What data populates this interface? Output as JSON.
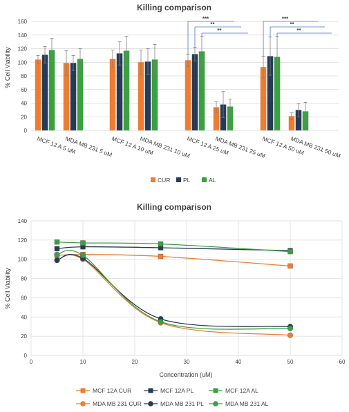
{
  "colors": {
    "CUR": "#ED7D31",
    "PL": "#263B55",
    "AL": "#3BA040",
    "sig_line": "#4472C4",
    "grid": "#D9D9D9",
    "axis_text": "#404040"
  },
  "chart_data": [
    {
      "type": "bar",
      "title": "Killing comparison",
      "ylabel": "% Cell Viability",
      "xlabel": "",
      "ylim": [
        0,
        160
      ],
      "yticks": [
        0,
        20,
        40,
        60,
        80,
        100,
        120,
        140,
        160
      ],
      "grid": true,
      "legend_position": "bottom",
      "groups": [
        {
          "label": "MCF 12 A  5 uM",
          "values": [
            104,
            111,
            118
          ],
          "errors": [
            6,
            12,
            17
          ]
        },
        {
          "label": "MDA MB 231  5 uM",
          "values": [
            99,
            99,
            105
          ],
          "errors": [
            18,
            11,
            15
          ]
        },
        {
          "label": "MCF 12 A  10 uM",
          "values": [
            105,
            113,
            117
          ],
          "errors": [
            13,
            17,
            21
          ]
        },
        {
          "label": "MDA MB 231  10 uM",
          "values": [
            100,
            101,
            104
          ],
          "errors": [
            18,
            19,
            22
          ]
        },
        {
          "label": "MCF 12 A  25 uM",
          "values": [
            103,
            112,
            116
          ],
          "errors": [
            9,
            10,
            22
          ]
        },
        {
          "label": "MDA MB 231  25 uM",
          "values": [
            34,
            38,
            35
          ],
          "errors": [
            8,
            19,
            11
          ]
        },
        {
          "label": "MCF 12 A  50 uM",
          "values": [
            93,
            109,
            108
          ],
          "errors": [
            16,
            28,
            30
          ]
        },
        {
          "label": "MDA MB 231  50 uM",
          "values": [
            21,
            30,
            28
          ],
          "errors": [
            5,
            10,
            13
          ]
        }
      ],
      "series": [
        {
          "name": "CUR",
          "color": "#ED7D31"
        },
        {
          "name": "PL",
          "color": "#263B55"
        },
        {
          "name": "AL",
          "color": "#3BA040"
        }
      ],
      "significance": [
        {
          "label": "***",
          "from_group": 4,
          "from_series": 0,
          "to_group": 5,
          "to_series": 0
        },
        {
          "label": "**",
          "from_group": 4,
          "from_series": 1,
          "to_group": 5,
          "to_series": 1
        },
        {
          "label": "**",
          "from_group": 4,
          "from_series": 2,
          "to_group": 5,
          "to_series": 2
        },
        {
          "label": "***",
          "from_group": 6,
          "from_series": 0,
          "to_group": 7,
          "to_series": 0
        },
        {
          "label": "**",
          "from_group": 6,
          "from_series": 1,
          "to_group": 7,
          "to_series": 1
        },
        {
          "label": "**",
          "from_group": 6,
          "from_series": 2,
          "to_group": 7,
          "to_series": 2
        }
      ]
    },
    {
      "type": "line",
      "title": "Killing comparison",
      "xlabel": "Concentration (uM)",
      "ylabel": "% Cell Viability",
      "xlim": [
        0,
        60
      ],
      "ylim": [
        0,
        140
      ],
      "xticks": [
        0,
        10,
        20,
        30,
        40,
        50,
        60
      ],
      "yticks": [
        0,
        20,
        40,
        60,
        80,
        100,
        120,
        140
      ],
      "grid": true,
      "legend_position": "bottom",
      "x": [
        5,
        10,
        25,
        50
      ],
      "series": [
        {
          "name": "MCF 12A CUR",
          "values": [
            104,
            105,
            103,
            93
          ],
          "color": "#ED7D31",
          "marker": "square"
        },
        {
          "name": "MCF 12A PL",
          "values": [
            111,
            113,
            112,
            109
          ],
          "color": "#263B55",
          "marker": "square"
        },
        {
          "name": "MCF 12A AL",
          "values": [
            118,
            117,
            116,
            108
          ],
          "color": "#3BA040",
          "marker": "square"
        },
        {
          "name": "MDA MB 231 CUR",
          "values": [
            99,
            100,
            34,
            21
          ],
          "color": "#ED7D31",
          "marker": "circle"
        },
        {
          "name": "MDA MB 231 PL",
          "values": [
            99,
            101,
            38,
            30
          ],
          "color": "#263B55",
          "marker": "circle"
        },
        {
          "name": "MDA MB 231 AL",
          "values": [
            105,
            104,
            35,
            28
          ],
          "color": "#3BA040",
          "marker": "circle"
        }
      ]
    }
  ]
}
